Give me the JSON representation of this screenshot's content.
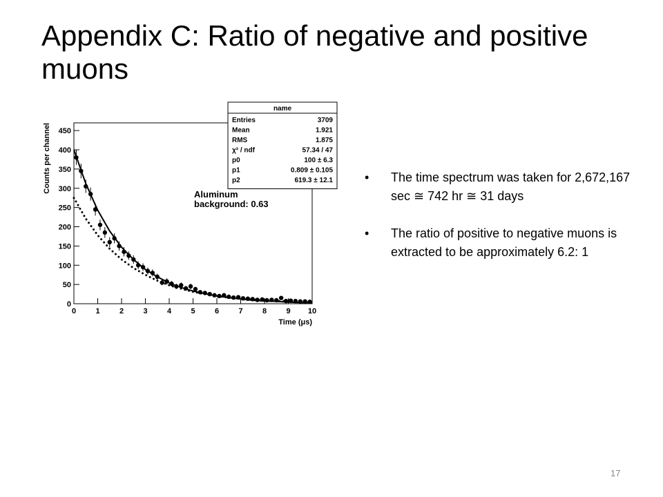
{
  "header": {
    "title": "Appendix C: Ratio of negative and positive muons"
  },
  "bullets": [
    "The time spectrum was taken for 2,672,167 sec ≅ 742 hr ≅ 31 days",
    "The ratio of positive to negative muons is extracted to be approximately 6.2: 1"
  ],
  "page_number": "17",
  "chart_data": {
    "type": "scatter",
    "xlabel": "Time (μs)",
    "ylabel": "Counts per channel",
    "xlim": [
      0,
      10
    ],
    "ylim": [
      0,
      470
    ],
    "xticks": [
      0,
      1,
      2,
      3,
      4,
      5,
      6,
      7,
      8,
      9,
      10
    ],
    "yticks": [
      0,
      50,
      100,
      150,
      200,
      250,
      300,
      350,
      400,
      450
    ],
    "color": "#000000",
    "x": [
      0.1,
      0.3,
      0.5,
      0.7,
      0.9,
      1.1,
      1.3,
      1.5,
      1.7,
      1.9,
      2.1,
      2.3,
      2.5,
      2.7,
      2.9,
      3.1,
      3.3,
      3.5,
      3.7,
      3.9,
      4.1,
      4.3,
      4.5,
      4.7,
      4.9,
      5.1,
      5.3,
      5.5,
      5.7,
      5.9,
      6.1,
      6.3,
      6.5,
      6.7,
      6.9,
      7.1,
      7.3,
      7.5,
      7.7,
      7.9,
      8.1,
      8.3,
      8.5,
      8.7,
      8.9,
      9.1,
      9.3,
      9.5,
      9.7,
      9.9
    ],
    "values": [
      380,
      345,
      305,
      285,
      245,
      205,
      185,
      160,
      170,
      150,
      135,
      125,
      115,
      100,
      95,
      85,
      80,
      70,
      55,
      58,
      52,
      45,
      48,
      40,
      45,
      38,
      30,
      28,
      25,
      22,
      20,
      22,
      18,
      16,
      17,
      14,
      13,
      12,
      10,
      11,
      9,
      10,
      9,
      15,
      7,
      8,
      7,
      6,
      6,
      5
    ],
    "errors": [
      19,
      19,
      17,
      17,
      16,
      14,
      14,
      13,
      13,
      12,
      12,
      11,
      11,
      10,
      10,
      9,
      9,
      8,
      7,
      8,
      7,
      7,
      7,
      6,
      7,
      6,
      5,
      5,
      5,
      5,
      4,
      5,
      4,
      4,
      4,
      4,
      4,
      3,
      3,
      3,
      3,
      3,
      3,
      4,
      3,
      3,
      3,
      2,
      2,
      2
    ],
    "fit_x": [
      0,
      0.5,
      1,
      1.5,
      2,
      2.5,
      3,
      3.5,
      4,
      4.5,
      5,
      5.5,
      6,
      6.5,
      7,
      7.5,
      8,
      8.5,
      9,
      9.5,
      10
    ],
    "fits": [
      {
        "style": "solid",
        "values": [
          400,
          312,
          243,
          189,
          147,
          115,
          89,
          70,
          54,
          42,
          33,
          26,
          20,
          16,
          12,
          9,
          7,
          6,
          4,
          3,
          3
        ]
      },
      {
        "style": "dotted",
        "values": [
          275,
          221,
          178,
          143,
          115,
          93,
          75,
          60,
          48,
          39,
          31,
          25,
          20,
          16,
          13,
          11,
          8,
          7,
          6,
          5,
          4
        ]
      }
    ],
    "annotation": [
      "Aluminum",
      "background: 0.63"
    ],
    "stats": {
      "title": "name",
      "rows": [
        [
          "Entries",
          "3709"
        ],
        [
          "Mean",
          "1.921"
        ],
        [
          "RMS",
          "1.875"
        ],
        [
          "χ² / ndf",
          "57.34 / 47"
        ],
        [
          "p0",
          "100 ± 6.3"
        ],
        [
          "p1",
          "0.809 ± 0.105"
        ],
        [
          "p2",
          "619.3 ± 12.1"
        ]
      ]
    }
  }
}
